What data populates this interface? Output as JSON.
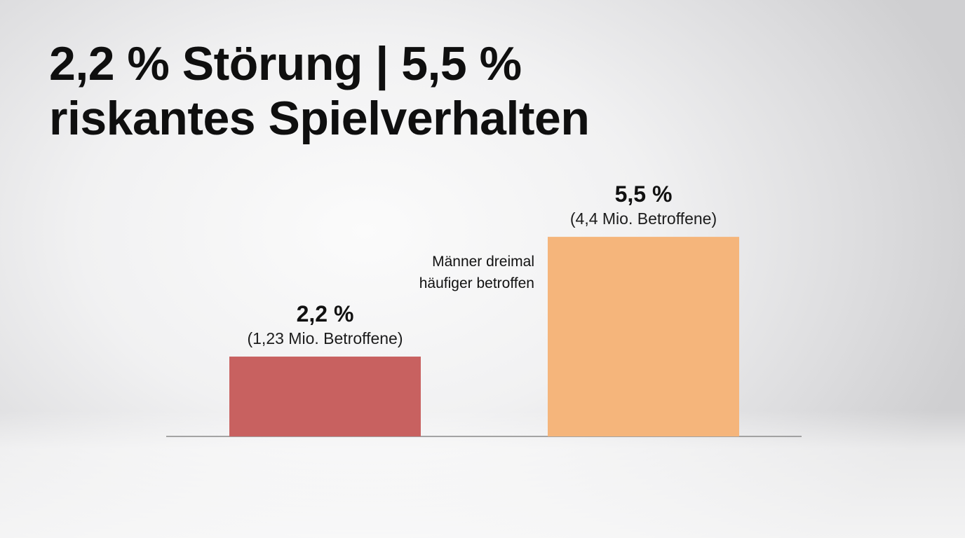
{
  "title": "2,2 % Störung | 5,5 % riskantes Spielverhalten",
  "colors": {
    "bar_disorder": "#c86160",
    "bar_risky": "#f5b57b",
    "baseline": "#8a8a8a"
  },
  "chart_data": {
    "type": "bar",
    "title": "2,2 % Störung | 5,5 % riskantes Spielverhalten",
    "xlabel": "",
    "ylabel": "",
    "grid": false,
    "unit": "%",
    "values": [
      2.2,
      5.5
    ],
    "bars": [
      {
        "value": 2.2,
        "value_label": "2,2 %",
        "sub_label": "(1,23 Mio. Betroffene)",
        "color": "#c86160"
      },
      {
        "value": 5.5,
        "value_label": "5,5 %",
        "sub_label": "(4,4 Mio. Betroffene)",
        "color": "#f5b57b"
      }
    ],
    "annotation": [
      "Männer dreimal",
      "häufiger betroffen"
    ]
  }
}
